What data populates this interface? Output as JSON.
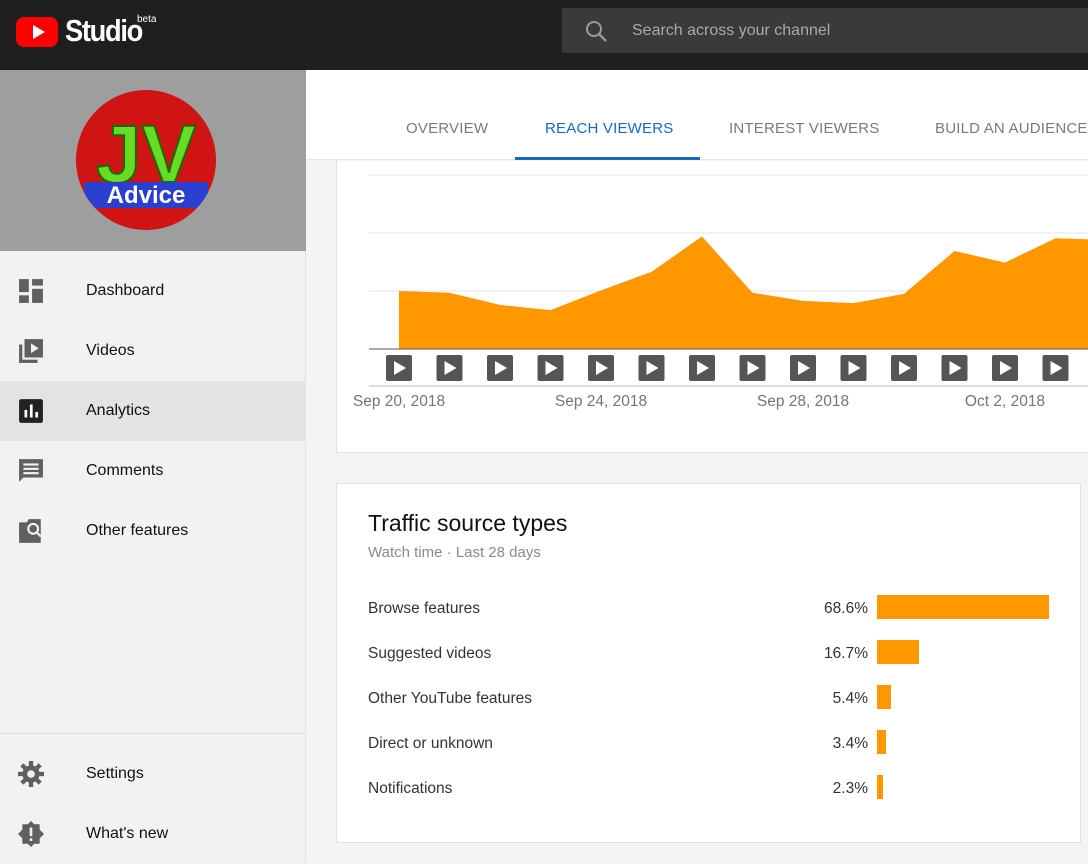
{
  "app": {
    "brand": "Studio",
    "badge": "beta",
    "colors": {
      "accent": "#1769c0",
      "chart": "#ff9800",
      "topbar": "#1f1f1f",
      "youtube_red": "#ff0000"
    }
  },
  "search": {
    "placeholder": "Search across your channel",
    "icon": "search-icon"
  },
  "channel": {
    "avatar_text_top": "JV",
    "avatar_text_bottom": "Advice"
  },
  "sidebar": {
    "items": [
      {
        "label": "Dashboard",
        "icon": "dashboard-icon"
      },
      {
        "label": "Videos",
        "icon": "videos-icon"
      },
      {
        "label": "Analytics",
        "icon": "analytics-icon",
        "active": true
      },
      {
        "label": "Comments",
        "icon": "comments-icon"
      },
      {
        "label": "Other features",
        "icon": "other-features-icon"
      }
    ],
    "bottom_items": [
      {
        "label": "Settings",
        "icon": "gear-icon"
      },
      {
        "label": "What's new",
        "icon": "whats-new-icon"
      }
    ]
  },
  "tabs": [
    {
      "label": "OVERVIEW"
    },
    {
      "label": "REACH VIEWERS",
      "active": true
    },
    {
      "label": "INTEREST VIEWERS"
    },
    {
      "label": "BUILD AN AUDIENCE"
    }
  ],
  "chart_data": {
    "type": "area",
    "x": [
      "Sep 20, 2018",
      "Sep 21, 2018",
      "Sep 22, 2018",
      "Sep 23, 2018",
      "Sep 24, 2018",
      "Sep 25, 2018",
      "Sep 26, 2018",
      "Sep 27, 2018",
      "Sep 28, 2018",
      "Sep 29, 2018",
      "Sep 30, 2018",
      "Oct 1, 2018",
      "Oct 2, 2018",
      "Oct 3, 2018",
      "Oct 4, 2018"
    ],
    "series": [
      {
        "values": [
          1.0,
          0.97,
          0.76,
          0.67,
          1.01,
          1.33,
          1.94,
          0.97,
          0.83,
          0.79,
          0.95,
          1.69,
          1.49,
          1.91,
          1.88
        ]
      }
    ],
    "ylim": [
      0,
      3
    ],
    "grid": true,
    "tick_labels": [
      "Sep 20, 2018",
      "Sep 24, 2018",
      "Sep 28, 2018",
      "Oct 2, 2018"
    ],
    "video_markers": 14
  },
  "traffic": {
    "title": "Traffic source types",
    "subtitle": "Watch time · Last 28 days",
    "rows": [
      {
        "label": "Browse features",
        "value": "68.6%",
        "pct": 68.6
      },
      {
        "label": "Suggested videos",
        "value": "16.7%",
        "pct": 16.7
      },
      {
        "label": "Other YouTube features",
        "value": "5.4%",
        "pct": 5.4
      },
      {
        "label": "Direct or unknown",
        "value": "3.4%",
        "pct": 3.4
      },
      {
        "label": "Notifications",
        "value": "2.3%",
        "pct": 2.3
      }
    ]
  }
}
